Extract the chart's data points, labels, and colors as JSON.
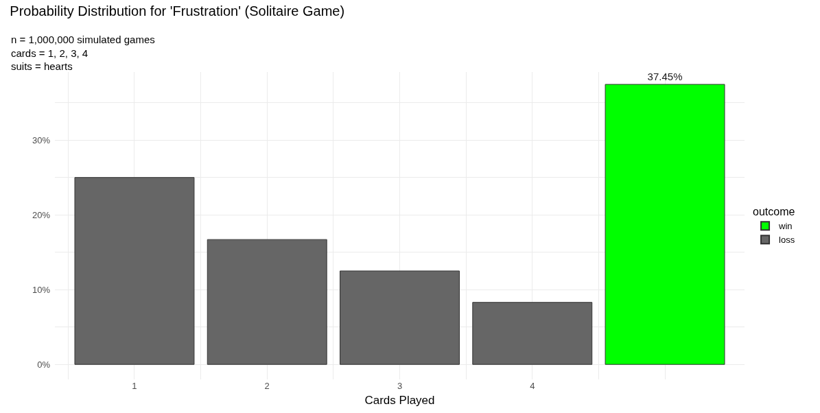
{
  "chart_data": {
    "type": "bar",
    "title": "Probability Distribution for 'Frustration' (Solitaire Game)",
    "subtitle": "n = 1,000,000 simulated games\ncards = 1, 2, 3, 4\nsuits = hearts",
    "xlabel": "Cards Played",
    "legend_title": "outcome",
    "categories": [
      "1",
      "2",
      "3",
      "4",
      null
    ],
    "series": [
      {
        "name": "win",
        "color": "#00ff00",
        "values": [
          null,
          null,
          null,
          null,
          37.45
        ],
        "value_labels": [
          null,
          null,
          null,
          null,
          "37.45%"
        ]
      },
      {
        "name": "loss",
        "color": "#666666",
        "values": [
          25.0,
          16.7,
          12.5,
          8.3,
          null
        ]
      }
    ],
    "ylim": [
      -2.0,
      39.1
    ],
    "yticks": [
      {
        "value": 0,
        "label": "0%"
      },
      {
        "value": 10,
        "label": "10%"
      },
      {
        "value": 20,
        "label": "20%"
      },
      {
        "value": 30,
        "label": "30%"
      }
    ],
    "grid": true,
    "legend": "right"
  }
}
